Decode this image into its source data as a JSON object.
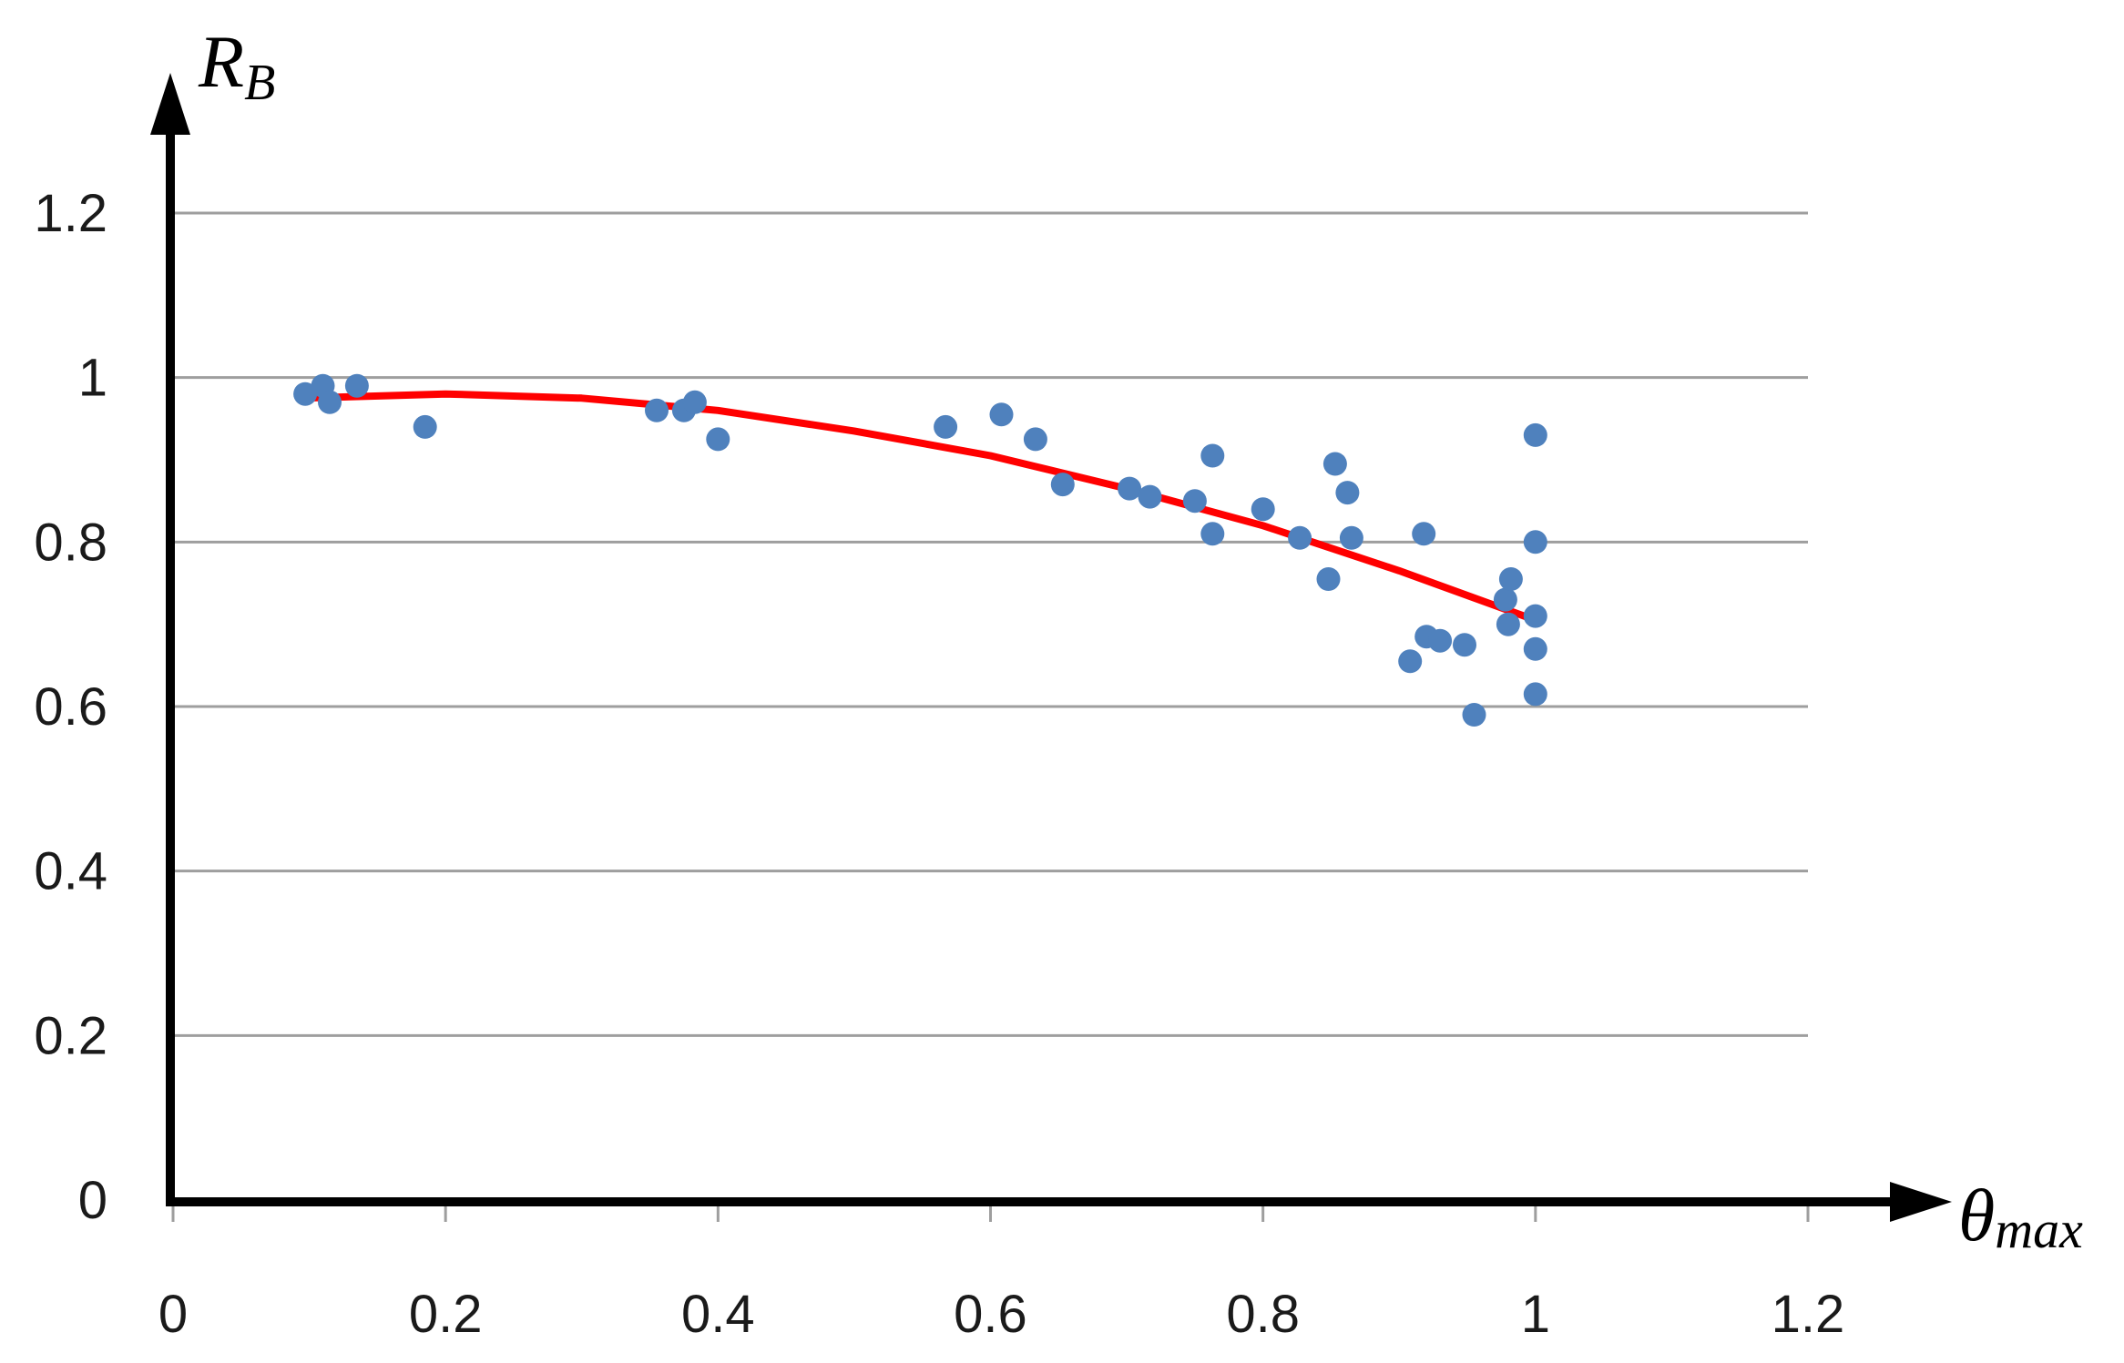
{
  "chart_data": {
    "type": "scatter",
    "xlabel": {
      "main": "θ",
      "sub": "max"
    },
    "ylabel": {
      "main": "R",
      "sub": "B"
    },
    "xlim": [
      0,
      1.2
    ],
    "ylim": [
      0,
      1.2
    ],
    "x_ticks": [
      "0",
      "0.2",
      "0.4",
      "0.6",
      "0.8",
      "1",
      "1.2"
    ],
    "y_ticks": [
      "0",
      "0.2",
      "0.4",
      "0.6",
      "0.8",
      "1",
      "1.2"
    ],
    "grid": {
      "horizontal": true,
      "vertical": false
    },
    "legend": "none",
    "series": [
      {
        "kind": "points",
        "color": "#4f81bd",
        "points": [
          [
            0.097,
            0.98
          ],
          [
            0.11,
            0.99
          ],
          [
            0.115,
            0.97
          ],
          [
            0.135,
            0.99
          ],
          [
            0.185,
            0.94
          ],
          [
            0.355,
            0.96
          ],
          [
            0.375,
            0.96
          ],
          [
            0.383,
            0.97
          ],
          [
            0.4,
            0.925
          ],
          [
            0.567,
            0.94
          ],
          [
            0.608,
            0.955
          ],
          [
            0.633,
            0.925
          ],
          [
            0.653,
            0.87
          ],
          [
            0.702,
            0.865
          ],
          [
            0.717,
            0.855
          ],
          [
            0.75,
            0.85
          ],
          [
            0.763,
            0.905
          ],
          [
            0.763,
            0.81
          ],
          [
            0.8,
            0.84
          ],
          [
            0.827,
            0.805
          ],
          [
            0.848,
            0.755
          ],
          [
            0.853,
            0.895
          ],
          [
            0.862,
            0.86
          ],
          [
            0.865,
            0.805
          ],
          [
            0.908,
            0.655
          ],
          [
            0.918,
            0.81
          ],
          [
            0.92,
            0.685
          ],
          [
            0.93,
            0.68
          ],
          [
            0.948,
            0.675
          ],
          [
            0.955,
            0.59
          ],
          [
            0.978,
            0.73
          ],
          [
            0.98,
            0.7
          ],
          [
            0.982,
            0.755
          ],
          [
            1.0,
            0.93
          ],
          [
            1.0,
            0.8
          ],
          [
            1.0,
            0.71
          ],
          [
            1.0,
            0.67
          ],
          [
            1.0,
            0.615
          ]
        ]
      },
      {
        "kind": "trendline",
        "color": "#ff0000",
        "points": [
          [
            0.095,
            0.975
          ],
          [
            0.2,
            0.98
          ],
          [
            0.3,
            0.975
          ],
          [
            0.4,
            0.96
          ],
          [
            0.5,
            0.935
          ],
          [
            0.6,
            0.905
          ],
          [
            0.7,
            0.865
          ],
          [
            0.8,
            0.82
          ],
          [
            0.9,
            0.765
          ],
          [
            1.0,
            0.705
          ]
        ]
      }
    ],
    "colors": {
      "axis": "#000000",
      "grid": "#9e9e9e"
    }
  }
}
